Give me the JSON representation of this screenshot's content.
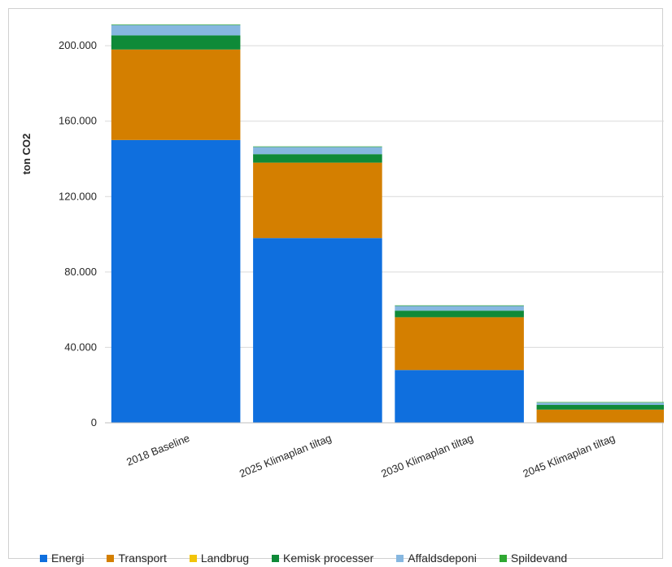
{
  "chart_data": {
    "type": "bar",
    "stacked": true,
    "title": "",
    "xlabel": "",
    "ylabel": "ton CO2",
    "ylim": [
      0,
      210000
    ],
    "yticks": [
      0,
      40000,
      80000,
      120000,
      160000,
      200000
    ],
    "ytick_labels": [
      "0",
      "40.000",
      "80.000",
      "120.000",
      "160.000",
      "200.000"
    ],
    "grid": true,
    "legend_position": "bottom",
    "categories": [
      "2018 Baseline",
      "2025 Klimaplan tiltag",
      "2030 Klimaplan tiltag",
      "2045 Klimaplan tiltag"
    ],
    "series": [
      {
        "name": "Energi",
        "color": "#0f6fde",
        "values": [
          150000,
          98000,
          28000,
          0
        ]
      },
      {
        "name": "Transport",
        "color": "#d47f00",
        "values": [
          48000,
          40000,
          28000,
          7000
        ]
      },
      {
        "name": "Landbrug",
        "color": "#f2c40a",
        "values": [
          0,
          0,
          0,
          0
        ]
      },
      {
        "name": "Kemisk processer",
        "color": "#0f8a38",
        "values": [
          7500,
          4500,
          3500,
          2500
        ]
      },
      {
        "name": "Affaldsdeponi",
        "color": "#86b7e0",
        "values": [
          5500,
          3800,
          2500,
          1200
        ]
      },
      {
        "name": "Spildevand",
        "color": "#2fa832",
        "values": [
          300,
          300,
          300,
          300
        ]
      }
    ]
  }
}
